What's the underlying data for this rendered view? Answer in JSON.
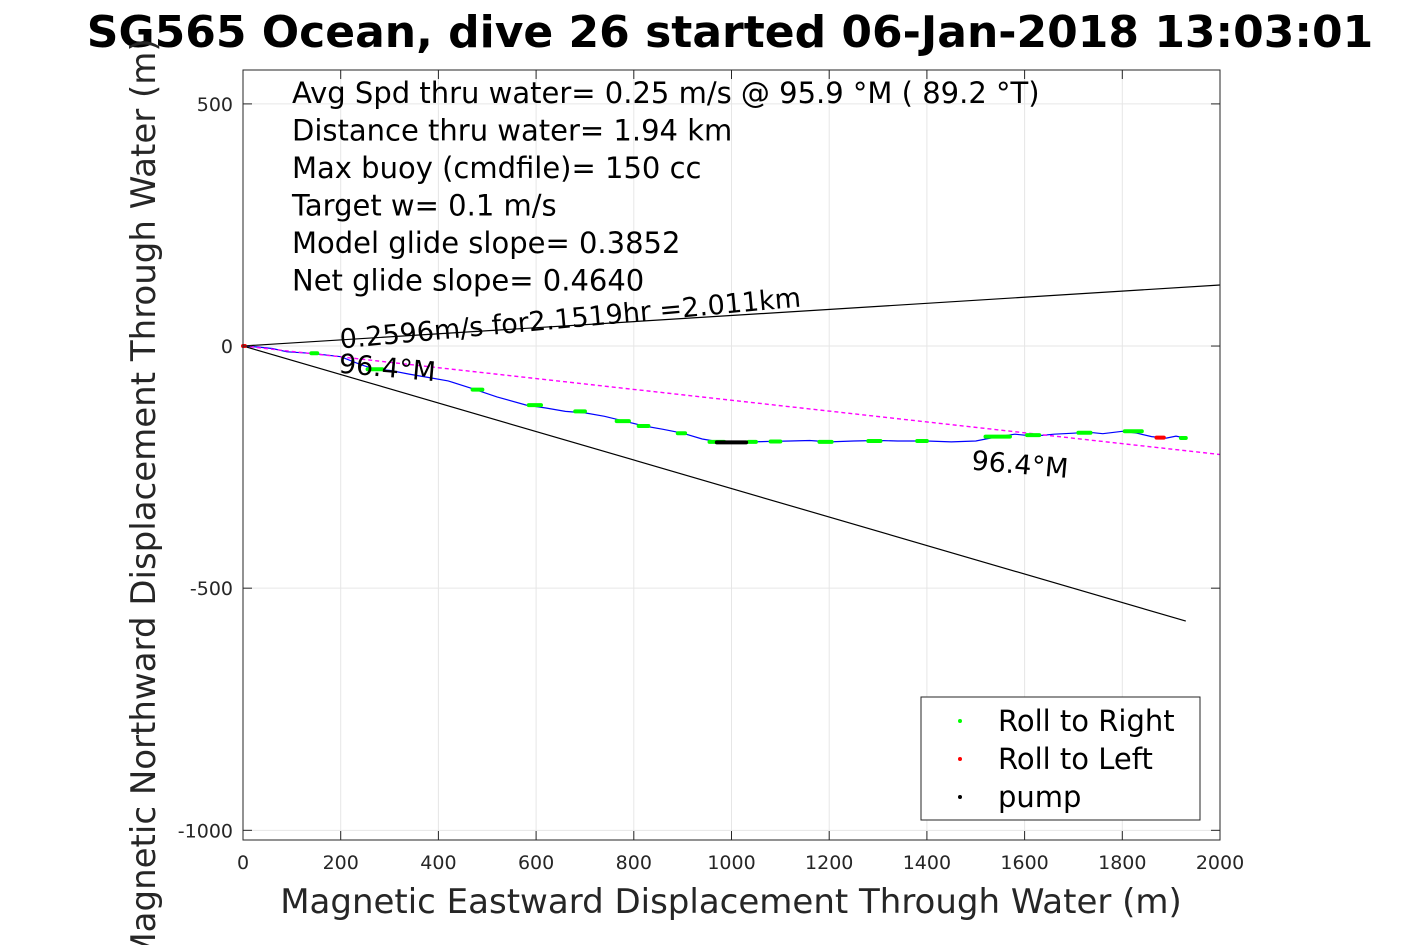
{
  "chart_data": {
    "type": "line",
    "title": "SG565 Ocean, dive 26 started 06-Jan-2018 13:03:01",
    "xlabel": "Magnetic Eastward Displacement Through Water (m)",
    "ylabel": "Magnetic Northward Displacement Through Water (m)",
    "xlim": [
      0,
      2000
    ],
    "ylim": [
      -1020,
      570
    ],
    "x_ticks": [
      0,
      200,
      400,
      600,
      800,
      1000,
      1200,
      1400,
      1600,
      1800,
      2000
    ],
    "y_ticks": [
      500,
      0,
      -500,
      -1000
    ],
    "x_tick_labels": [
      "0",
      "200",
      "400",
      "600",
      "800",
      "1000",
      "1200",
      "1400",
      "1600",
      "1800",
      "2000"
    ],
    "y_tick_labels": [
      "500",
      "0",
      "-500",
      "-1000"
    ],
    "grid": true,
    "info_lines": [
      "Avg Spd thru water=  0.25 m/s @  95.9 °M ( 89.2 °T)",
      "Distance thru water=  1.94 km",
      "Max buoy (cmdfile)= 150 cc",
      "Target w= 0.1 m/s",
      "Model glide slope= 0.3852",
      "Net glide slope= 0.4640"
    ],
    "annotations": [
      {
        "text": "0.2596m/s for2.1519hr =2.011km",
        "x": 200,
        "y": -5,
        "rotation": -5.2
      },
      {
        "text": "96.4°M",
        "x": 195,
        "y": -55,
        "rotation": 5
      },
      {
        "text": "96.4°M",
        "x": 1490,
        "y": -255,
        "rotation": 5
      }
    ],
    "series": [
      {
        "name": "track",
        "color": "#0000ff",
        "x": [
          0,
          30,
          60,
          90,
          140,
          200,
          240,
          270,
          300,
          340,
          380,
          420,
          470,
          520,
          580,
          620,
          660,
          700,
          740,
          780,
          820,
          860,
          900,
          940,
          975,
          1000,
          1040,
          1080,
          1120,
          1160,
          1200,
          1250,
          1300,
          1340,
          1400,
          1450,
          1500,
          1540,
          1580,
          1620,
          1660,
          1700,
          1730,
          1760,
          1800,
          1830,
          1860,
          1890,
          1910,
          1930
        ],
        "y": [
          0,
          -2,
          -5,
          -12,
          -15,
          -22,
          -38,
          -48,
          -50,
          -58,
          -65,
          -72,
          -88,
          -105,
          -122,
          -128,
          -135,
          -138,
          -145,
          -155,
          -165,
          -172,
          -180,
          -192,
          -198,
          -200,
          -198,
          -197,
          -196,
          -195,
          -198,
          -196,
          -195,
          -196,
          -196,
          -198,
          -196,
          -188,
          -182,
          -186,
          -182,
          -180,
          -178,
          -181,
          -176,
          -180,
          -187,
          -190,
          -186,
          -190
        ]
      },
      {
        "name": "net",
        "color": "#ff00ff",
        "x": [
          0,
          2000
        ],
        "y": [
          0,
          -224
        ]
      },
      {
        "name": "bound1",
        "color": "#000000",
        "x": [
          0,
          2000
        ],
        "y": [
          0,
          126
        ]
      },
      {
        "name": "bound2",
        "color": "#000000",
        "x": [
          0,
          1930
        ],
        "y": [
          0,
          -568
        ]
      }
    ],
    "roll_right": [
      {
        "x0": 140,
        "x1": 152,
        "y": -15
      },
      {
        "x0": 255,
        "x1": 285,
        "y": -48
      },
      {
        "x0": 470,
        "x1": 490,
        "y": -90
      },
      {
        "x0": 585,
        "x1": 610,
        "y": -122
      },
      {
        "x0": 680,
        "x1": 700,
        "y": -135
      },
      {
        "x0": 765,
        "x1": 790,
        "y": -155
      },
      {
        "x0": 810,
        "x1": 830,
        "y": -165
      },
      {
        "x0": 890,
        "x1": 905,
        "y": -180
      },
      {
        "x0": 955,
        "x1": 985,
        "y": -198
      },
      {
        "x0": 1035,
        "x1": 1050,
        "y": -198
      },
      {
        "x0": 1080,
        "x1": 1100,
        "y": -197
      },
      {
        "x0": 1180,
        "x1": 1205,
        "y": -198
      },
      {
        "x0": 1280,
        "x1": 1305,
        "y": -196
      },
      {
        "x0": 1380,
        "x1": 1400,
        "y": -196
      },
      {
        "x0": 1520,
        "x1": 1570,
        "y": -187
      },
      {
        "x0": 1605,
        "x1": 1630,
        "y": -184
      },
      {
        "x0": 1710,
        "x1": 1735,
        "y": -179
      },
      {
        "x0": 1805,
        "x1": 1840,
        "y": -176
      },
      {
        "x0": 1920,
        "x1": 1930,
        "y": -190
      }
    ],
    "roll_left": [
      {
        "x0": 0,
        "x1": 4,
        "y": 0
      },
      {
        "x0": 1870,
        "x1": 1885,
        "y": -189
      }
    ],
    "pump": [
      {
        "x0": 970,
        "x1": 1030,
        "y": -199
      }
    ],
    "legend": {
      "position": "bottom-right",
      "entries": [
        {
          "label": "Roll to Right",
          "color": "#00ff00"
        },
        {
          "label": "Roll to Left",
          "color": "#ff0000"
        },
        {
          "label": "pump",
          "color": "#000000"
        }
      ]
    }
  }
}
